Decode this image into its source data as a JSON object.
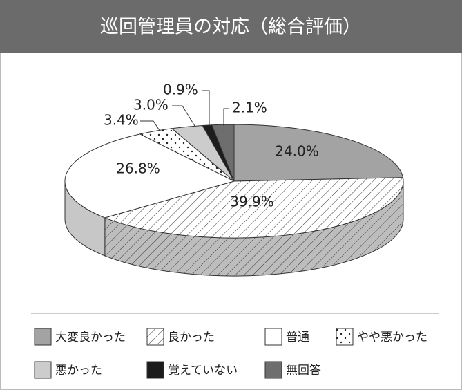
{
  "chart_data": {
    "type": "pie3d",
    "title": "巡回管理員の対応（総合評価）",
    "categories": [
      "大変良かった",
      "良かった",
      "普通",
      "やや悪かった",
      "悪かった",
      "覚えていない",
      "無回答"
    ],
    "values": [
      24.0,
      39.9,
      26.8,
      3.4,
      3.0,
      0.9,
      2.1
    ],
    "value_labels": [
      "24.0%",
      "39.9%",
      "26.8%",
      "3.4%",
      "3.0%",
      "0.9%",
      "2.1%"
    ],
    "colors": [
      "#a3a3a3",
      "#ffffff",
      "#ffffff",
      "#ffffff",
      "#cccccc",
      "#1c1c1c",
      "#6e6e6e"
    ],
    "patterns": [
      "solid",
      "hatch",
      "solid",
      "dots",
      "solid",
      "solid",
      "solid"
    ]
  }
}
